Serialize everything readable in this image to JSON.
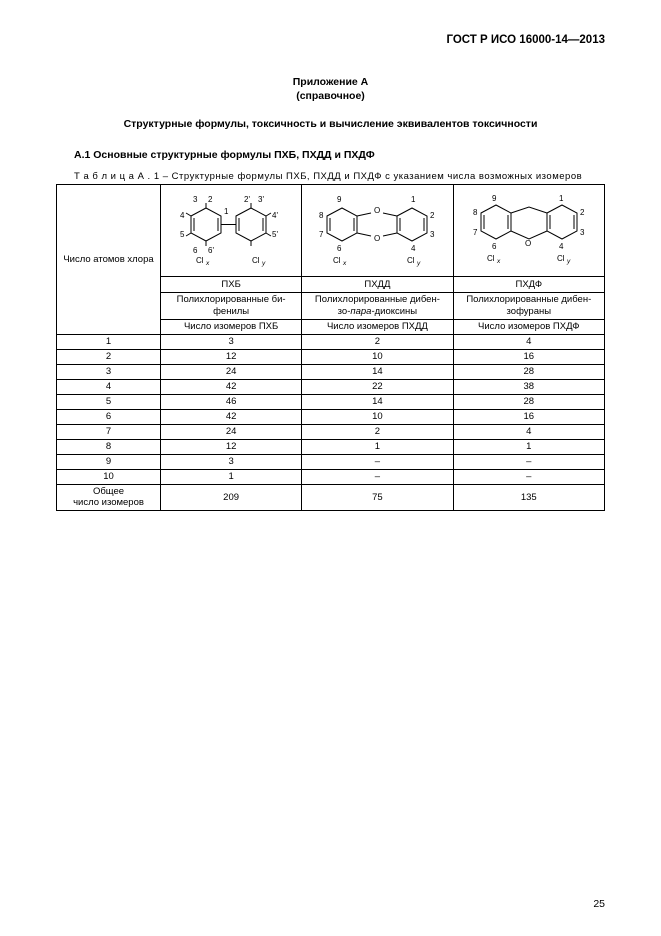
{
  "doc_id": "ГОСТ Р ИСО 16000-14—2013",
  "appendix": {
    "line1": "Приложение А",
    "line2": "(справочное)"
  },
  "main_title": "Структурные формулы, токсичность и вычисление эквивалентов токсичности",
  "section_title": "А.1 Основные структурные формулы ПХБ, ПХДД и ПХДФ",
  "table_caption": "Т а б л и ц а   А . 1  – Структурные формулы ПХБ, ПХДД и ПХДФ с указанием числа возможных изомеров",
  "row_header": "Число атомов хлора",
  "compounds": {
    "a": {
      "short": "ПХБ",
      "full_l1": "Полихлорированные би-",
      "full_l2": "фенилы",
      "count_label": "Число изомеров ПХБ"
    },
    "b": {
      "short": "ПХДД",
      "full_l1": "Полихлорированные дибен-",
      "full_l2_pre": "зо-",
      "full_l2_it": "пара",
      "full_l2_post": "-диоксины",
      "count_label": "Число изомеров ПХДД"
    },
    "c": {
      "short": "ПХДФ",
      "full_l1": "Полихлорированные дибен-",
      "full_l2": "зофураны",
      "count_label": "Число изомеров ПХДФ"
    }
  },
  "rows": [
    {
      "n": "1",
      "a": "3",
      "b": "2",
      "c": "4"
    },
    {
      "n": "2",
      "a": "12",
      "b": "10",
      "c": "16"
    },
    {
      "n": "3",
      "a": "24",
      "b": "14",
      "c": "28"
    },
    {
      "n": "4",
      "a": "42",
      "b": "22",
      "c": "38"
    },
    {
      "n": "5",
      "a": "46",
      "b": "14",
      "c": "28"
    },
    {
      "n": "6",
      "a": "42",
      "b": "10",
      "c": "16"
    },
    {
      "n": "7",
      "a": "24",
      "b": "2",
      "c": "4"
    },
    {
      "n": "8",
      "a": "12",
      "b": "1",
      "c": "1"
    },
    {
      "n": "9",
      "a": "3",
      "b": "–",
      "c": "–"
    },
    {
      "n": "10",
      "a": "1",
      "b": "–",
      "c": "–"
    }
  ],
  "total": {
    "label_l1": "Общее",
    "label_l2": "число изомеров",
    "a": "209",
    "b": "75",
    "c": "135"
  },
  "page_num": "25",
  "chem_labels": {
    "cl": "Cl",
    "x": "x",
    "y": "y",
    "o": "O"
  },
  "colors": {
    "text": "#000000",
    "line": "#000000",
    "bg": "#ffffff"
  }
}
